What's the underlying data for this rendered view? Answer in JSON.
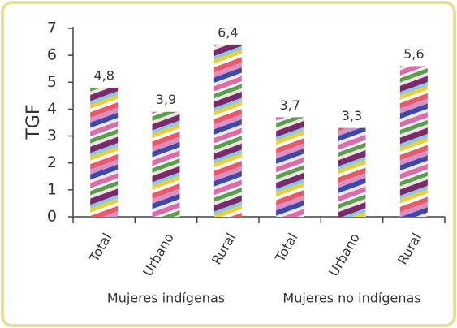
{
  "chart_data": {
    "type": "bar",
    "y_label": "TGF",
    "categories": [
      "Total",
      "Urbano",
      "Rural",
      "Total",
      "Urbano",
      "Rural"
    ],
    "group_labels": [
      "Mujeres indígenas",
      "Mujeres no indígenas"
    ],
    "values": [
      4.8,
      3.9,
      6.4,
      3.7,
      3.3,
      5.6
    ],
    "value_labels": [
      "4,8",
      "3,9",
      "6,4",
      "3,7",
      "3,3",
      "5,6"
    ],
    "ylim": [
      0,
      7
    ],
    "yticks": [
      0,
      1,
      2,
      3,
      4,
      5,
      6,
      7
    ]
  }
}
